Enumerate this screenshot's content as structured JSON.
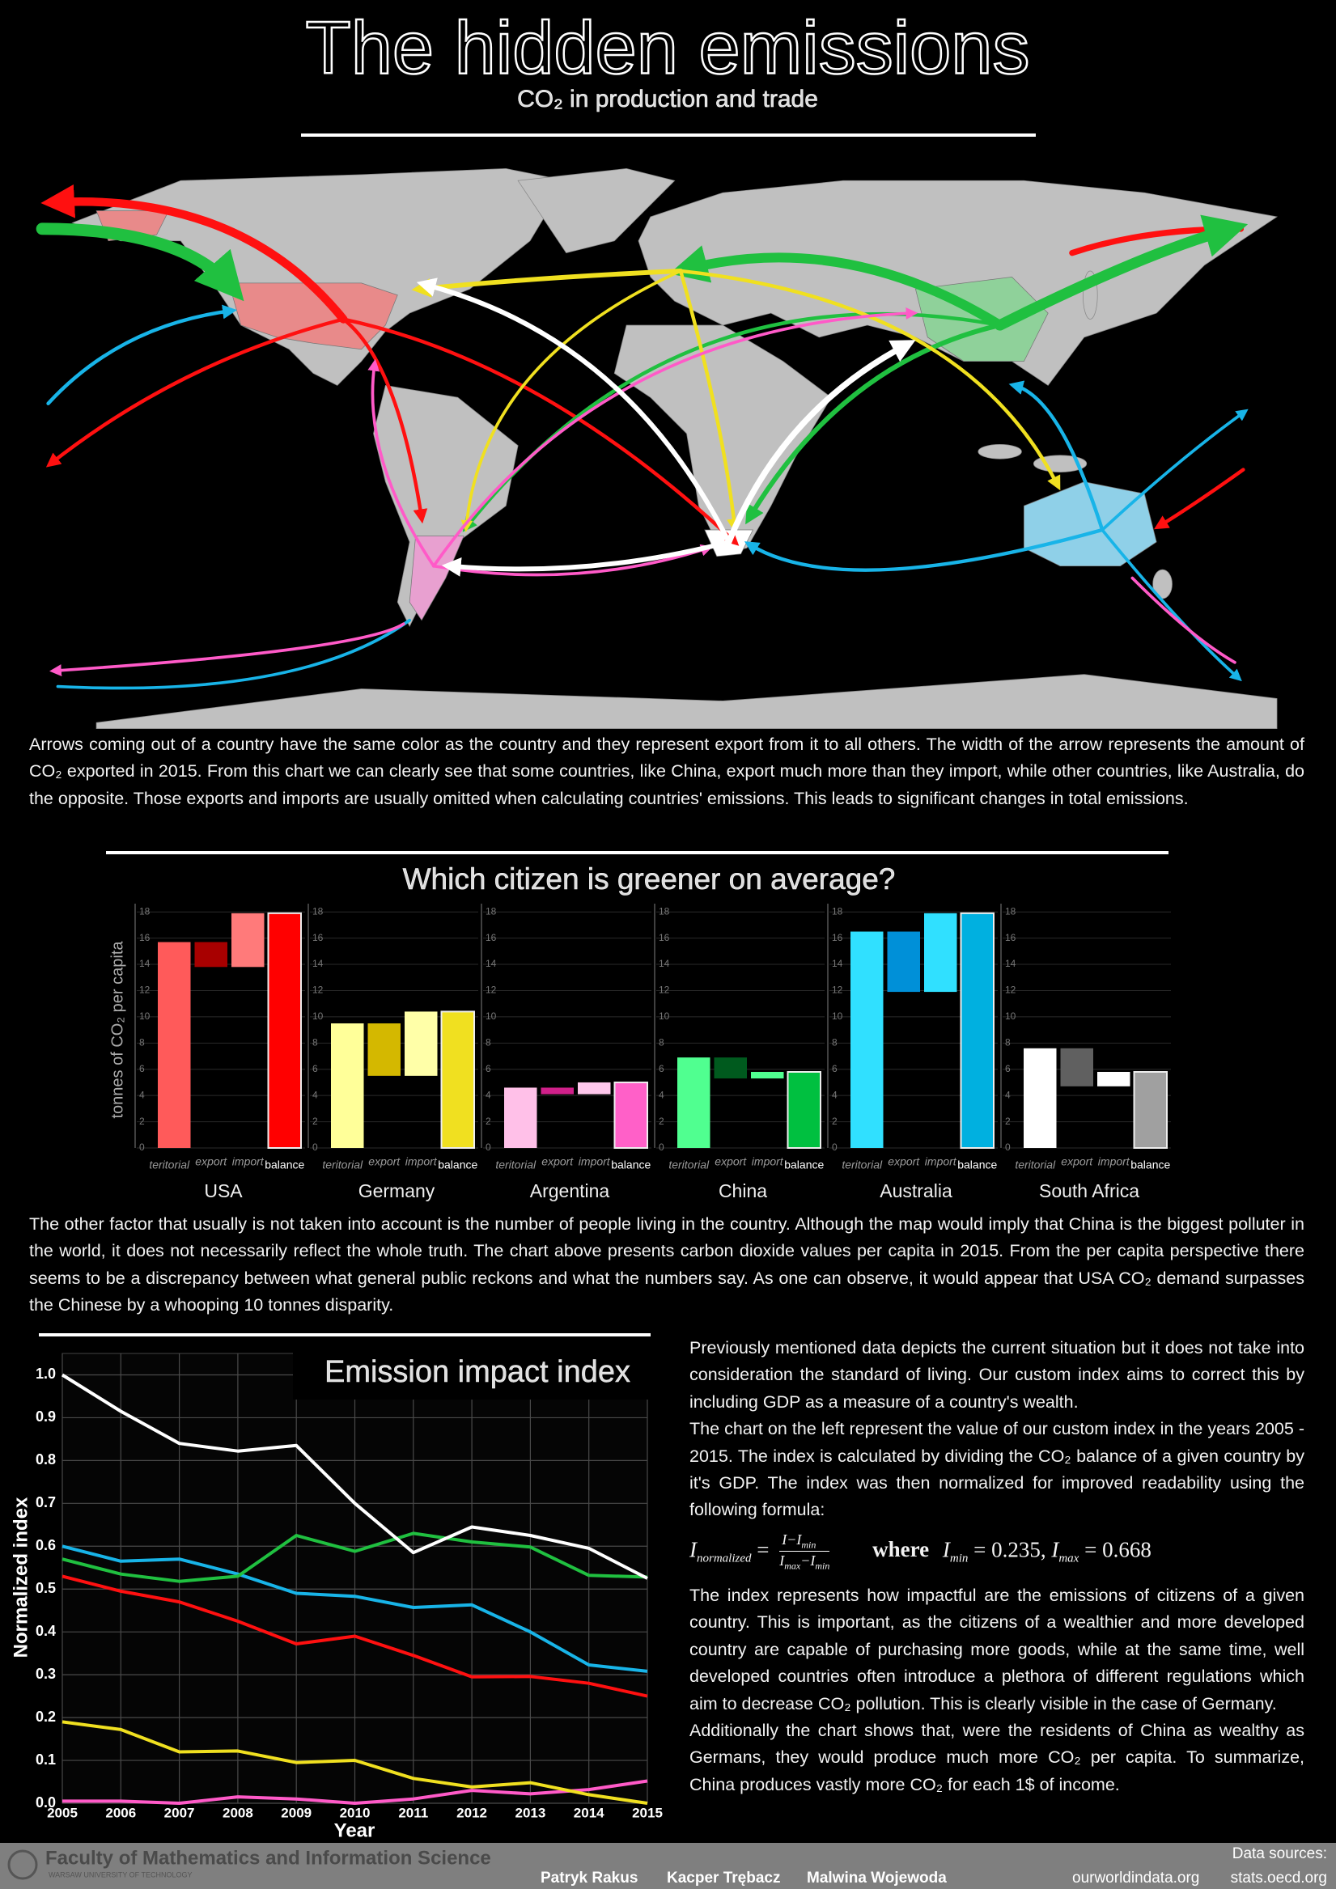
{
  "header": {
    "title": "The hidden emissions",
    "subtitle": "CO₂ in production and trade"
  },
  "paragraphs": [
    "Arrows coming out of a country have the same color as the country and they represent export from it to all others. The width of the arrow represents the amount of CO₂ exported in 2015. From this chart we can clearly see that some countries, like China, export much more than they import, while other countries, like Australia, do the opposite. Those exports and imports are usually omitted when calculating countries' emissions. This leads to significant changes in total emissions.",
    "The other factor that usually is not taken into account is the number of people living in the country. Although the map would imply that China is the biggest polluter in the world, it does not necessarily reflect the whole truth. The chart above presents carbon dioxide values per capita in 2015. From the per capita perspective there seems to be a discrepancy between what general public reckons and what the numbers say. As one can observe, it would appear that USA CO₂ demand surpasses the Chinese by a whooping 10 tonnes disparity."
  ],
  "side_text": [
    "Previously mentioned data depicts the current situation but it does not take into consideration the standard of living.  Our custom index aims to correct this by including GDP as a measure of a country's wealth.",
    "The chart on the left represent the value of our custom index in the years 2005 - 2015. The index is calculated by dividing the CO₂ balance of a given country by it's GDP. The index was then normalized for improved readability using the following formula:",
    "The index represents how impactful are the emissions of citizens of a given country. This is important, as the citizens of a wealthier and more developed country are capable of purchasing more goods, while at the same time, well developed countries often introduce a plethora of different regulations which aim to decrease CO₂ pollution. This is clearly visible in the case of Germany.",
    "Additionally the chart shows that, were the residents of China as wealthy as Germans, they would produce much more CO₂ per capita. To summarize, China produces vastly more CO₂ for each 1$ of income."
  ],
  "formula": {
    "lhs": "I",
    "lhs_sub": "normalized",
    "eq": "=",
    "num": "I−I",
    "num_sub": "min",
    "den_a": "I",
    "den_a_sub": "max",
    "den_b": "−I",
    "den_b_sub": "min",
    "where": "where",
    "min_label": "I",
    "min_sub": "min",
    "min_value": "= 0.235,",
    "max_label": "I",
    "max_sub": "max",
    "max_value": "= 0.668"
  },
  "footer": {
    "faculty": "Faculty of Mathematics and Information Science",
    "university": "WARSAW UNIVERSITY OF TECHNOLOGY",
    "authors": [
      "Patryk Rakus",
      "Kacper Trębacz",
      "Malwina Wojewoda"
    ],
    "sources_label": "Data sources:",
    "sources": [
      "ourworldindata.org",
      "stats.oecd.org"
    ]
  },
  "chart_data": [
    {
      "type": "waterfall",
      "title": "Which citizen is greener on average?",
      "ylabel": "tonnes of CO₂ per capita",
      "categories": [
        "teritorial",
        "export",
        "import",
        "balance"
      ],
      "ylim": [
        0,
        19
      ],
      "yticks": [
        0,
        2,
        4,
        6,
        8,
        10,
        12,
        14,
        16,
        18
      ],
      "grid": true,
      "panels": [
        {
          "name": "USA",
          "colors": [
            "#ff5a5a",
            "#a80000",
            "#ff7a7a",
            "#ff0000"
          ],
          "values": [
            15.7,
            1.9,
            4.1,
            17.9
          ]
        },
        {
          "name": "Germany",
          "colors": [
            "#ffff99",
            "#d4b800",
            "#ffffa8",
            "#f0e020"
          ],
          "values": [
            9.5,
            4.0,
            4.9,
            10.4
          ]
        },
        {
          "name": "Argentina",
          "colors": [
            "#ffc0e8",
            "#d0208a",
            "#ffc8ec",
            "#ff60c8"
          ],
          "values": [
            4.6,
            0.5,
            0.9,
            5.0
          ]
        },
        {
          "name": "China",
          "colors": [
            "#50ff90",
            "#005a1e",
            "#50ff90",
            "#00c040"
          ],
          "values": [
            6.9,
            1.6,
            0.5,
            5.8
          ]
        },
        {
          "name": "Australia",
          "colors": [
            "#30e0ff",
            "#0090d8",
            "#30e0ff",
            "#00b0e0"
          ],
          "values": [
            16.5,
            4.6,
            6.0,
            17.9
          ]
        },
        {
          "name": "South Africa",
          "colors": [
            "#ffffff",
            "#606060",
            "#ffffff",
            "#a0a0a0"
          ],
          "values": [
            7.6,
            2.9,
            1.1,
            5.8
          ]
        }
      ]
    },
    {
      "type": "line",
      "title": "Emission impact index",
      "xlabel": "Year",
      "ylabel": "Normalized index",
      "x": [
        2005,
        2006,
        2007,
        2008,
        2009,
        2010,
        2011,
        2012,
        2013,
        2014,
        2015
      ],
      "xlim": [
        2005,
        2015
      ],
      "xticks": [
        2005,
        2006,
        2007,
        2008,
        2009,
        2010,
        2011,
        2012,
        2013,
        2014,
        2015
      ],
      "ylim": [
        0,
        1.05
      ],
      "yticks": [
        {
          "value": 0,
          "label": "0.0"
        },
        0.1,
        0.2,
        0.3,
        0.4,
        0.5,
        0.6,
        0.7,
        0.8,
        0.9,
        {
          "value": 1,
          "label": "1.0"
        }
      ],
      "grid": true,
      "series": [
        {
          "color": "#ff5ac8",
          "values": [
            0.005,
            0.005,
            0.0,
            0.015,
            0.01,
            0.0,
            0.01,
            0.03,
            0.022,
            0.032,
            0.052
          ]
        },
        {
          "color": "#f0e020",
          "values": [
            0.19,
            0.172,
            0.12,
            0.122,
            0.095,
            0.1,
            0.058,
            0.038,
            0.048,
            0.02,
            0.0
          ]
        },
        {
          "color": "#ff1010",
          "values": [
            0.53,
            0.495,
            0.47,
            0.425,
            0.372,
            0.39,
            0.345,
            0.295,
            0.296,
            0.28,
            0.25
          ]
        },
        {
          "color": "#18b4e8",
          "values": [
            0.6,
            0.565,
            0.57,
            0.535,
            0.49,
            0.483,
            0.457,
            0.463,
            0.4,
            0.323,
            0.308
          ]
        },
        {
          "color": "#20c040",
          "values": [
            0.57,
            0.535,
            0.518,
            0.53,
            0.625,
            0.588,
            0.63,
            0.61,
            0.598,
            0.532,
            0.528
          ]
        },
        {
          "color": "#ffffff",
          "values": [
            1.0,
            0.915,
            0.84,
            0.822,
            0.835,
            0.7,
            0.585,
            0.645,
            0.625,
            0.595,
            0.525
          ]
        }
      ]
    }
  ]
}
